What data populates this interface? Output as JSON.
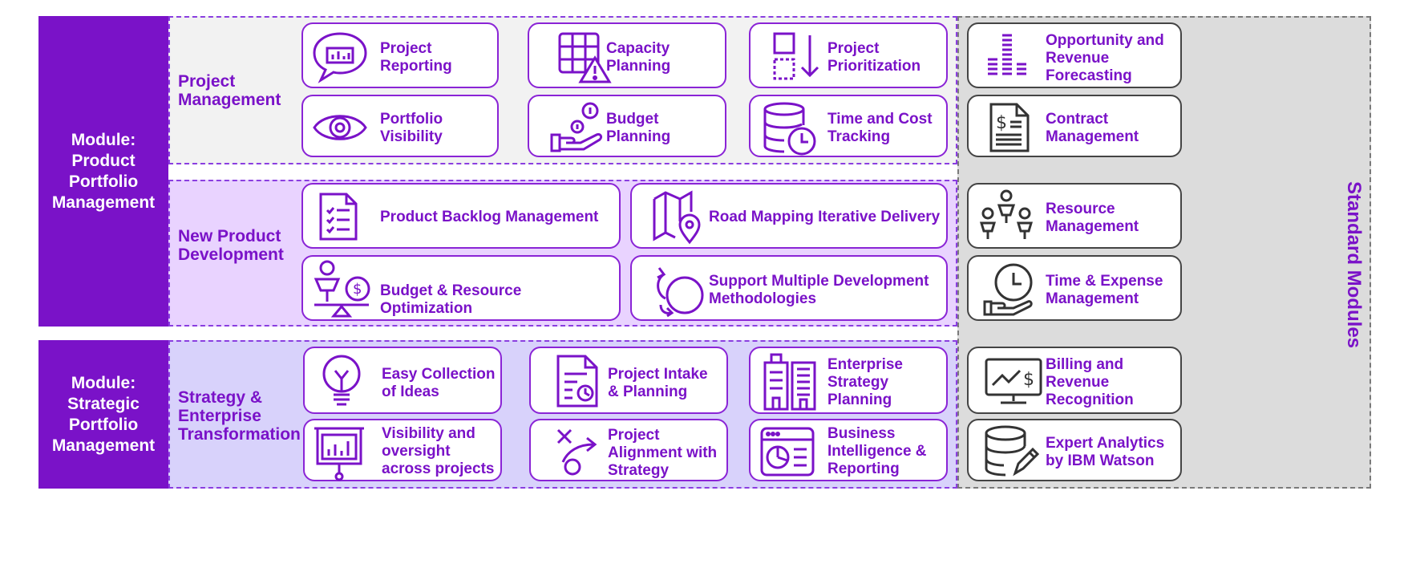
{
  "modules": {
    "product": "Module: Product Portfolio Management",
    "strategic": "Module: Strategic Portfolio Management"
  },
  "sections": {
    "project_management": "Project Management",
    "new_product_development": "New Product Development",
    "strategy_transformation": "Strategy & Enterprise Transformation",
    "standard_modules": "Standard Modules"
  },
  "cards": {
    "project_reporting": "Project Reporting",
    "capacity_planning": "Capacity Planning",
    "project_prioritization": "Project Prioritization",
    "portfolio_visibility": "Portfolio Visibility",
    "budget_planning": "Budget Planning",
    "time_cost_tracking": "Time and Cost Tracking",
    "product_backlog": "Product Backlog Management",
    "road_mapping": "Road Mapping Iterative Delivery",
    "budget_resource": "Budget & Resource Optimization",
    "support_methodologies": "Support Multiple Development Methodologies",
    "easy_collection": "Easy Collection of Ideas",
    "project_intake": "Project Intake & Planning",
    "enterprise_strategy": "Enterprise Strategy Planning",
    "visibility_oversight": "Visibility and oversight across projects",
    "project_alignment": "Project Alignment with Strategy",
    "business_intelligence": "Business Intelligence & Reporting"
  },
  "standard_cards": {
    "opportunity_revenue": "Opportunity and Revenue Forecasting",
    "contract_management": "Contract Management",
    "resource_management": "Resource Management",
    "time_expense": "Time & Expense Management",
    "billing_revenue": "Billing and Revenue Recognition",
    "expert_analytics": "Expert Analytics by IBM Watson"
  },
  "colors": {
    "accent": "#7a12c8",
    "pm_background": "#f2f2f2",
    "npd_background": "#e9d3ff",
    "strategy_background": "#d8d2fb",
    "standard_background": "#dcdcdc"
  },
  "icons": {
    "project_reporting": "chart-speech-bubble-icon",
    "capacity_planning": "grid-warning-icon",
    "project_prioritization": "boxes-arrow-down-icon",
    "portfolio_visibility": "eye-icon",
    "budget_planning": "hand-coins-icon",
    "time_cost_tracking": "database-clock-icon",
    "product_backlog": "checklist-document-icon",
    "road_mapping": "map-pin-icon",
    "budget_resource": "scale-person-dollar-icon",
    "support_methodologies": "cycle-arrows-icon",
    "easy_collection": "lightbulb-icon",
    "project_intake": "document-chart-icon",
    "enterprise_strategy": "buildings-icon",
    "visibility_oversight": "presentation-chart-icon",
    "project_alignment": "strategy-arrow-icon",
    "business_intelligence": "dashboard-window-icon",
    "opportunity_revenue": "stacked-bars-icon",
    "contract_management": "contract-dollar-icon",
    "resource_management": "people-network-icon",
    "time_expense": "clock-hand-icon",
    "billing_revenue": "monitor-trend-dollar-icon",
    "expert_analytics": "database-pencil-icon"
  }
}
